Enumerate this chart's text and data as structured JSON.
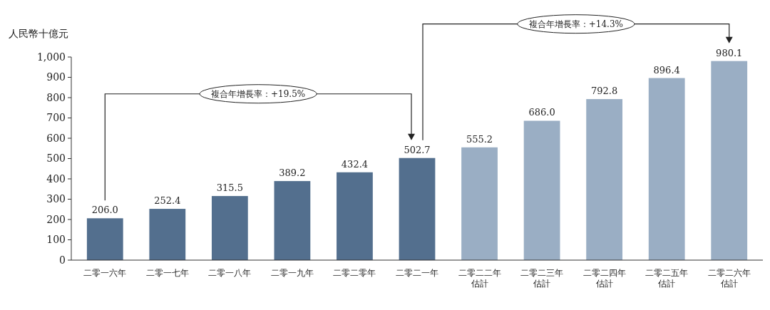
{
  "chart_data": {
    "type": "bar",
    "ylabel": "人民幣十億元",
    "categories": [
      "二零一六年",
      "二零一七年",
      "二零一八年",
      "二零一九年",
      "二零二零年",
      "二零二一年",
      "二零二二年估計",
      "二零二三年估計",
      "二零二四年估計",
      "二零二五年估計",
      "二零二六年估計"
    ],
    "values": [
      206.0,
      252.4,
      315.5,
      389.2,
      432.4,
      502.7,
      555.2,
      686.0,
      792.8,
      896.4,
      980.1
    ],
    "value_labels": [
      "206.0",
      "252.4",
      "315.5",
      "389.2",
      "432.4",
      "502.7",
      "555.2",
      "686.0",
      "792.8",
      "896.4",
      "980.1"
    ],
    "colors": [
      "#536f8e",
      "#536f8e",
      "#536f8e",
      "#536f8e",
      "#536f8e",
      "#536f8e",
      "#9aaec4",
      "#9aaec4",
      "#9aaec4",
      "#9aaec4",
      "#9aaec4"
    ],
    "ylim": [
      0,
      1000
    ],
    "yticks": [
      0,
      100,
      200,
      300,
      400,
      500,
      600,
      700,
      800,
      900,
      {
        "value": 1000,
        "label": "1,000"
      }
    ],
    "annotations": [
      "複合年增長率：+19.5%",
      "複合年增長率：+14.3%"
    ],
    "grid": false
  }
}
